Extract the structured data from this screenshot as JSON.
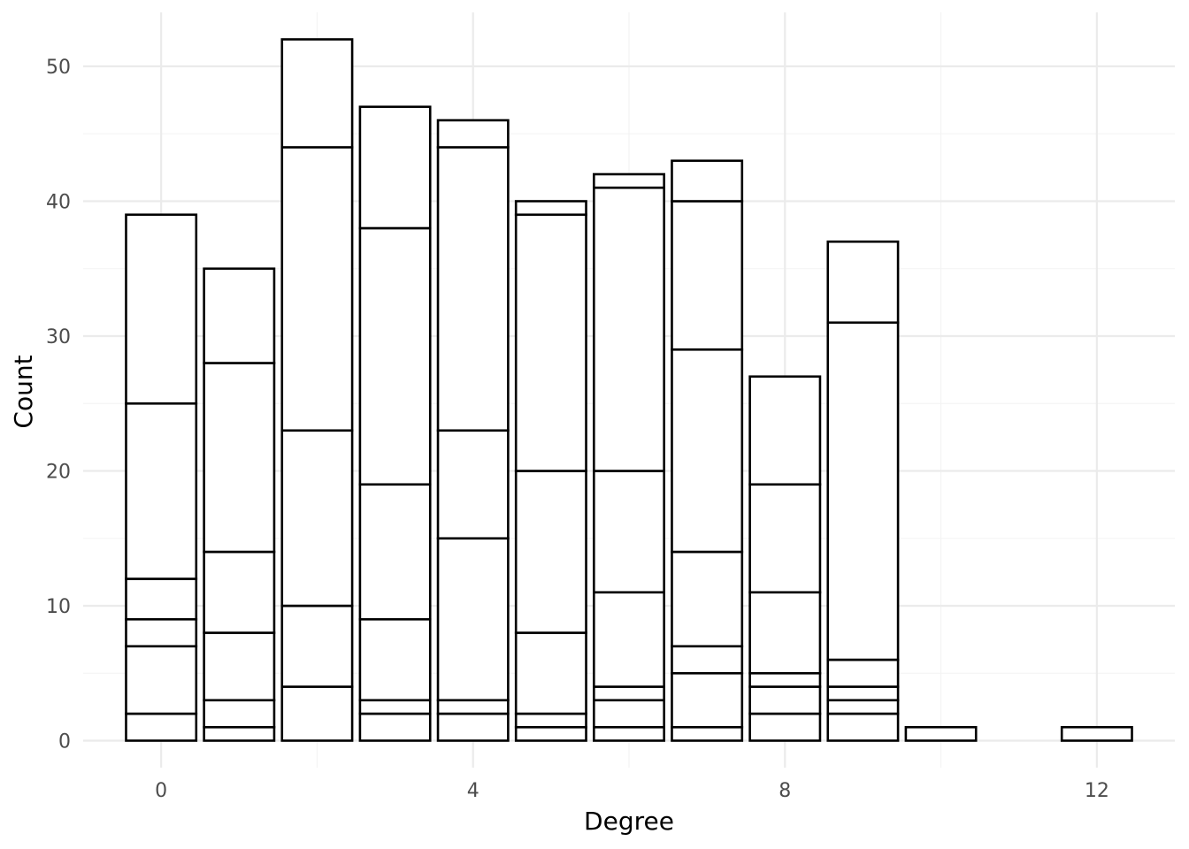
{
  "chart_data": {
    "type": "bar",
    "stacked": true,
    "xlabel": "Degree",
    "ylabel": "Count",
    "xlim": [
      -1,
      13
    ],
    "ylim": [
      -2,
      54
    ],
    "x_ticks": [
      0,
      4,
      8,
      12
    ],
    "x_tick_labels": [
      "0",
      "4",
      "8",
      "12"
    ],
    "y_ticks": [
      0,
      10,
      20,
      30,
      40,
      50
    ],
    "y_tick_labels": [
      "0",
      "10",
      "20",
      "30",
      "40",
      "50"
    ],
    "grid": true,
    "legend": "none",
    "fill_color": "#ffffff",
    "outline_color": "#000000",
    "bars": [
      {
        "x": 0,
        "total": 39,
        "segment_boundaries": [
          2,
          7,
          9,
          12,
          25,
          39
        ]
      },
      {
        "x": 1,
        "total": 35,
        "segment_boundaries": [
          1,
          3,
          8,
          14,
          28,
          35
        ]
      },
      {
        "x": 2,
        "total": 52,
        "segment_boundaries": [
          4,
          10,
          23,
          44,
          52
        ]
      },
      {
        "x": 3,
        "total": 47,
        "segment_boundaries": [
          2,
          3,
          9,
          19,
          38,
          47
        ]
      },
      {
        "x": 4,
        "total": 46,
        "segment_boundaries": [
          2,
          3,
          15,
          23,
          44,
          46
        ]
      },
      {
        "x": 5,
        "total": 40,
        "segment_boundaries": [
          1,
          2,
          8,
          20,
          39,
          40
        ]
      },
      {
        "x": 6,
        "total": 42,
        "segment_boundaries": [
          1,
          3,
          4,
          11,
          20,
          41,
          42
        ]
      },
      {
        "x": 7,
        "total": 43,
        "segment_boundaries": [
          1,
          5,
          7,
          14,
          29,
          40,
          43
        ]
      },
      {
        "x": 8,
        "total": 27,
        "segment_boundaries": [
          2,
          4,
          5,
          11,
          19,
          27
        ]
      },
      {
        "x": 9,
        "total": 37,
        "segment_boundaries": [
          2,
          3,
          4,
          6,
          31,
          37
        ]
      },
      {
        "x": 10,
        "total": 1,
        "segment_boundaries": [
          1
        ]
      },
      {
        "x": 12,
        "total": 1,
        "segment_boundaries": [
          1
        ]
      }
    ]
  }
}
